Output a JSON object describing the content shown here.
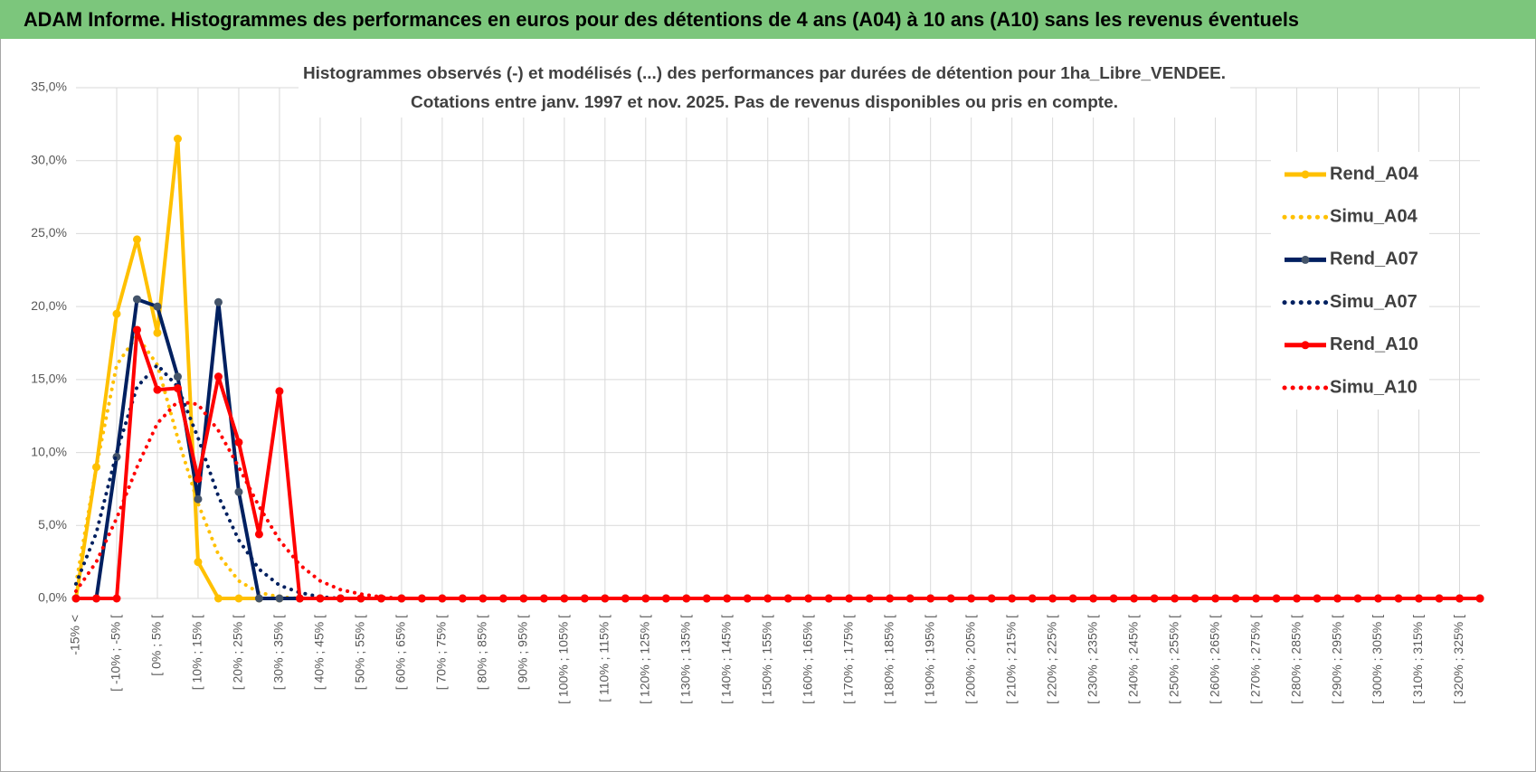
{
  "header": {
    "title": "ADAM Informe. Histogrammes des performances en euros pour des détentions de 4 ans (A04) à 10 ans (A10) sans les revenus éventuels"
  },
  "chart_data": {
    "type": "line",
    "title": "Histogrammes observés (-) et modélisés (...) des performances par durées de détention pour 1ha_Libre_VENDEE.",
    "subtitle": "Cotations entre janv. 1997 et nov. 2025. Pas de revenus disponibles ou pris en compte.",
    "grid": true,
    "legend": "right",
    "ylim": [
      0,
      35
    ],
    "yticks": [
      {
        "value": 0,
        "label": "0,0%"
      },
      {
        "value": 5,
        "label": "5,0%"
      },
      {
        "value": 10,
        "label": "10,0%"
      },
      {
        "value": 15,
        "label": "15,0%"
      },
      {
        "value": 20,
        "label": "20,0%"
      },
      {
        "value": 25,
        "label": "25,0%"
      },
      {
        "value": 30,
        "label": "30,0%"
      },
      {
        "value": 35,
        "label": "35,0%"
      }
    ],
    "categories": [
      "-15% <",
      null,
      "[ -10% ; -5% [",
      null,
      "[ 0% ; 5% [",
      null,
      "[ 10% ; 15% [",
      null,
      "[ 20% ; 25% [",
      null,
      "[ 30% ; 35% [",
      null,
      "[ 40% ; 45% [",
      null,
      "[ 50% ; 55% [",
      null,
      "[ 60% ; 65% [",
      null,
      "[ 70% ; 75% [",
      null,
      "[ 80% ; 85% [",
      null,
      "[ 90% ; 95% [",
      null,
      "[ 100% ; 105% [",
      null,
      "[ 110% ; 115% [",
      null,
      "[ 120% ; 125% [",
      null,
      "[ 130% ; 135% [",
      null,
      "[ 140% ; 145% [",
      null,
      "[ 150% ; 155% [",
      null,
      "[ 160% ; 165% [",
      null,
      "[ 170% ; 175% [",
      null,
      "[ 180% ; 185% [",
      null,
      "[ 190% ; 195% [",
      null,
      "[ 200% ; 205% [",
      null,
      "[ 210% ; 215% [",
      null,
      "[ 220% ; 225% [",
      null,
      "[ 230% ; 235% [",
      null,
      "[ 240% ; 245% [",
      null,
      "[ 250% ; 255% [",
      null,
      "[ 260% ; 265% [",
      null,
      "[ 270% ; 275% [",
      null,
      "[ 280% ; 285% [",
      null,
      "[ 290% ; 295% [",
      null,
      "[ 300% ; 305% [",
      null,
      "[ 310% ; 315% [",
      null,
      "[ 320% ; 325% [",
      null
    ],
    "series": [
      {
        "name": "Rend_A04",
        "color": "#ffc000",
        "marker_color": "#ffc000",
        "style": "solid",
        "values": [
          0,
          9,
          19.5,
          24.6,
          18.2,
          31.5,
          2.5,
          0,
          0,
          0,
          0,
          0,
          0,
          0,
          0,
          0,
          0,
          0,
          0,
          0,
          0,
          0,
          0,
          0,
          0,
          0,
          0,
          0,
          0,
          0,
          0,
          0,
          0,
          0,
          0,
          0,
          0,
          0,
          0,
          0,
          0,
          0,
          0,
          0,
          0,
          0,
          0,
          0,
          0,
          0,
          0,
          0,
          0,
          0,
          0,
          0,
          0,
          0,
          0,
          0,
          0,
          0,
          0,
          0,
          0,
          0,
          0,
          0,
          0,
          0
        ]
      },
      {
        "name": "Simu_A04",
        "color": "#ffc000",
        "style": "dotted",
        "values": [
          1,
          9,
          16,
          18,
          16,
          11,
          6.5,
          3,
          1.2,
          0.4,
          0.1,
          0,
          0,
          0,
          0,
          0,
          0,
          0,
          0,
          0,
          0,
          0,
          0,
          0,
          0,
          0,
          0,
          0,
          0,
          0,
          0,
          0,
          0,
          0,
          0,
          0,
          0,
          0,
          0,
          0,
          0,
          0,
          0,
          0,
          0,
          0,
          0,
          0,
          0,
          0,
          0,
          0,
          0,
          0,
          0,
          0,
          0,
          0,
          0,
          0,
          0,
          0,
          0,
          0,
          0,
          0,
          0,
          0,
          0,
          0
        ]
      },
      {
        "name": "Rend_A07",
        "color": "#002060",
        "marker_color": "#44546a",
        "style": "solid",
        "values": [
          0,
          0,
          9.7,
          20.5,
          20,
          15.2,
          6.8,
          20.3,
          7.3,
          0,
          0,
          0,
          0,
          0,
          0,
          0,
          0,
          0,
          0,
          0,
          0,
          0,
          0,
          0,
          0,
          0,
          0,
          0,
          0,
          0,
          0,
          0,
          0,
          0,
          0,
          0,
          0,
          0,
          0,
          0,
          0,
          0,
          0,
          0,
          0,
          0,
          0,
          0,
          0,
          0,
          0,
          0,
          0,
          0,
          0,
          0,
          0,
          0,
          0,
          0,
          0,
          0,
          0,
          0,
          0,
          0,
          0,
          0,
          0,
          0
        ]
      },
      {
        "name": "Simu_A07",
        "color": "#002060",
        "style": "dotted",
        "values": [
          1,
          4.5,
          10,
          14.5,
          16,
          14.5,
          11,
          7,
          4,
          2,
          0.9,
          0.4,
          0.1,
          0,
          0,
          0,
          0,
          0,
          0,
          0,
          0,
          0,
          0,
          0,
          0,
          0,
          0,
          0,
          0,
          0,
          0,
          0,
          0,
          0,
          0,
          0,
          0,
          0,
          0,
          0,
          0,
          0,
          0,
          0,
          0,
          0,
          0,
          0,
          0,
          0,
          0,
          0,
          0,
          0,
          0,
          0,
          0,
          0,
          0,
          0,
          0,
          0,
          0,
          0,
          0,
          0,
          0,
          0,
          0,
          0
        ]
      },
      {
        "name": "Rend_A10",
        "color": "#ff0000",
        "marker_color": "#ff0000",
        "style": "solid",
        "values": [
          0,
          0,
          0,
          18.4,
          14.3,
          14.4,
          8.2,
          15.2,
          10.7,
          4.4,
          14.2,
          0,
          0,
          0,
          0,
          0,
          0,
          0,
          0,
          0,
          0,
          0,
          0,
          0,
          0,
          0,
          0,
          0,
          0,
          0,
          0,
          0,
          0,
          0,
          0,
          0,
          0,
          0,
          0,
          0,
          0,
          0,
          0,
          0,
          0,
          0,
          0,
          0,
          0,
          0,
          0,
          0,
          0,
          0,
          0,
          0,
          0,
          0,
          0,
          0,
          0,
          0,
          0,
          0,
          0,
          0,
          0,
          0,
          0,
          0
        ]
      },
      {
        "name": "Simu_A10",
        "color": "#ff0000",
        "style": "dotted",
        "values": [
          0.5,
          2.5,
          5.5,
          9,
          12,
          13.5,
          13.3,
          11.5,
          9,
          6.3,
          4,
          2.3,
          1.2,
          0.6,
          0.3,
          0.1,
          0,
          0,
          0,
          0,
          0,
          0,
          0,
          0,
          0,
          0,
          0,
          0,
          0,
          0,
          0,
          0,
          0,
          0,
          0,
          0,
          0,
          0,
          0,
          0,
          0,
          0,
          0,
          0,
          0,
          0,
          0,
          0,
          0,
          0,
          0,
          0,
          0,
          0,
          0,
          0,
          0,
          0,
          0,
          0,
          0,
          0,
          0,
          0,
          0,
          0,
          0,
          0,
          0,
          0
        ]
      }
    ]
  }
}
